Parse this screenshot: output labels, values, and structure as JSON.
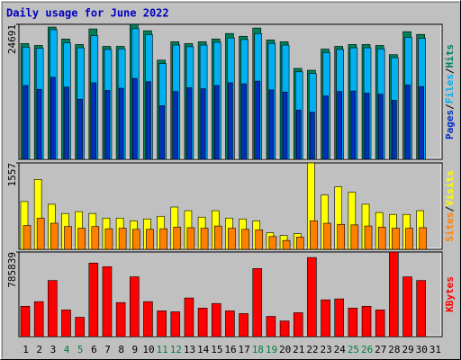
{
  "chart_data": [
    {
      "type": "bar",
      "title": "Daily usage for June 2022",
      "title_color": "#0000c0",
      "ylim": [
        0,
        24691
      ],
      "yticks": [
        24691
      ],
      "legend_separator": "/",
      "series": [
        {
          "name": "Hits",
          "color": "#00805c",
          "values": [
            21164,
            20828,
            24187,
            22004,
            20996,
            23851,
            20660,
            20660,
            24691,
            23515,
            18140,
            21500,
            21164,
            21500,
            22004,
            23011,
            22508,
            24019,
            21836,
            21500,
            16629,
            16293,
            20156,
            20660,
            20996,
            20996,
            20828,
            19148,
            23347,
            22843,
            null
          ]
        },
        {
          "name": "Files",
          "color": "#00b0f0",
          "values": [
            20500,
            20300,
            23700,
            21300,
            20400,
            22600,
            20100,
            20200,
            23900,
            22800,
            17500,
            20900,
            20600,
            20900,
            21400,
            22200,
            21900,
            23000,
            21200,
            20900,
            16000,
            15700,
            19500,
            20100,
            20400,
            20400,
            20200,
            18600,
            22300,
            22100,
            null
          ]
        },
        {
          "name": "Pages",
          "color": "#0030c0",
          "values": [
            13500,
            12800,
            15000,
            13200,
            11000,
            14000,
            12600,
            13000,
            14800,
            14200,
            9800,
            12400,
            13100,
            12900,
            13500,
            14000,
            13800,
            14300,
            12700,
            12300,
            9000,
            8600,
            11600,
            12400,
            12500,
            12100,
            11900,
            10800,
            13600,
            13300,
            null
          ]
        }
      ]
    },
    {
      "type": "bar",
      "ylim": [
        0,
        1557
      ],
      "yticks": [
        1557
      ],
      "legend_separator": "/",
      "series": [
        {
          "name": "Visits",
          "color": "#ffff00",
          "values": [
            861,
            1259,
            812,
            646,
            679,
            646,
            563,
            563,
            513,
            547,
            596,
            762,
            696,
            580,
            696,
            563,
            547,
            513,
            298,
            248,
            282,
            1557,
            977,
            1126,
            1027,
            812,
            663,
            629,
            629,
            696,
            null
          ]
        },
        {
          "name": "Sites",
          "color": "#ff8000",
          "values": [
            430,
            560,
            470,
            410,
            380,
            410,
            370,
            380,
            360,
            360,
            370,
            400,
            390,
            380,
            420,
            380,
            360,
            350,
            230,
            160,
            220,
            513,
            470,
            450,
            440,
            420,
            400,
            380,
            380,
            390,
            null
          ]
        }
      ]
    },
    {
      "type": "bar",
      "ylim": [
        0,
        785839
      ],
      "yticks": [
        785839
      ],
      "categories": [
        "1",
        "2",
        "3",
        "4",
        "5",
        "6",
        "7",
        "8",
        "9",
        "10",
        "11",
        "12",
        "13",
        "14",
        "15",
        "16",
        "17",
        "18",
        "19",
        "20",
        "21",
        "22",
        "23",
        "24",
        "25",
        "26",
        "27",
        "28",
        "29",
        "30",
        "31"
      ],
      "category_colors": [
        "#000000",
        "#000000",
        "#000000",
        "#008040",
        "#008040",
        "#000000",
        "#000000",
        "#000000",
        "#000000",
        "#000000",
        "#008040",
        "#008040",
        "#000000",
        "#000000",
        "#000000",
        "#000000",
        "#000000",
        "#008040",
        "#008040",
        "#000000",
        "#000000",
        "#000000",
        "#000000",
        "#000000",
        "#008040",
        "#008040",
        "#000000",
        "#000000",
        "#000000",
        "#000000",
        "#000000"
      ],
      "series": [
        {
          "name": "KBytes",
          "color": "#ff0000",
          "values": [
            281886,
            324596,
            521062,
            247718,
            179382,
            683360,
            649192,
            316054,
            555230,
            324596,
            239176,
            230634,
            358764,
            264802,
            307512,
            239176,
            213550,
            632108,
            187924,
            145214,
            222092,
            734612,
            341680,
            350222,
            264802,
            281886,
            247718,
            785839,
            555230,
            521062,
            null
          ]
        }
      ]
    }
  ]
}
